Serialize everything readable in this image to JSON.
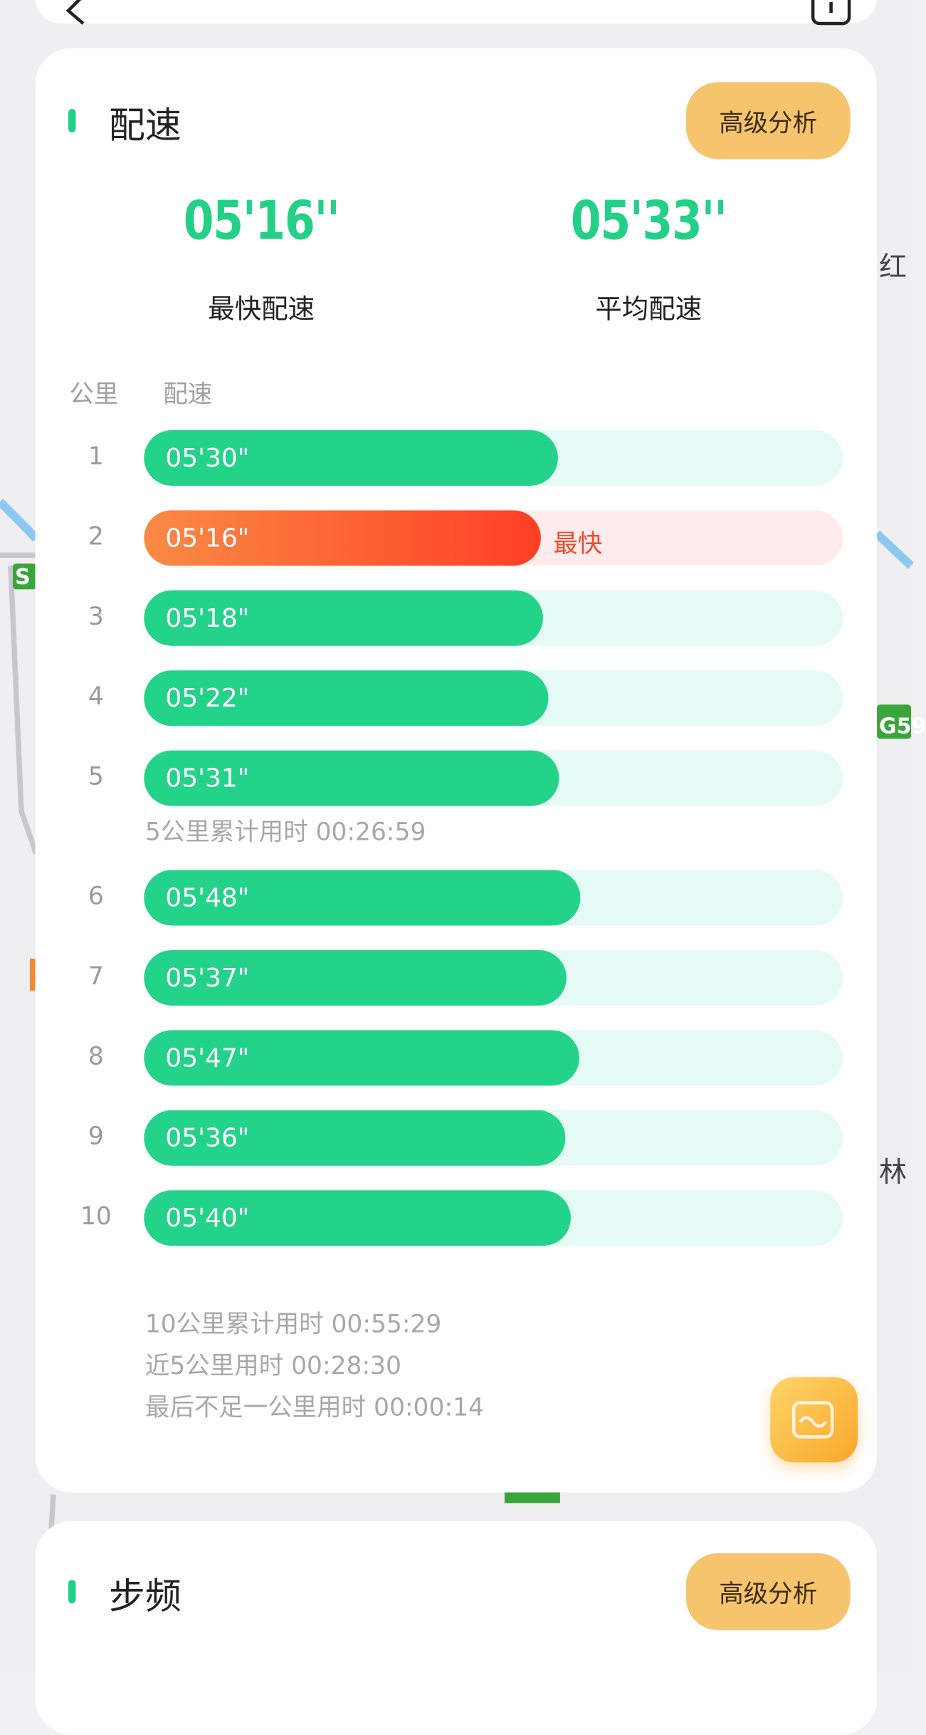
{
  "map_labels": [
    "红",
    "林",
    "G59",
    "S"
  ],
  "pace_card": {
    "title": "配速",
    "button": "高级分析",
    "stats": [
      {
        "value": "05'16''",
        "label": "最快配速"
      },
      {
        "value": "05'33''",
        "label": "平均配速"
      }
    ],
    "columns": [
      "公里",
      "配速"
    ],
    "rows": [
      {
        "km": "1",
        "pace": "05'30\""
      },
      {
        "km": "2",
        "pace": "05'16\"",
        "tag": "最快"
      },
      {
        "km": "3",
        "pace": "05'18\""
      },
      {
        "km": "4",
        "pace": "05'22\""
      },
      {
        "km": "5",
        "pace": "05'31\""
      },
      {
        "note": "5公里累计用时 00:26:59"
      },
      {
        "km": "6",
        "pace": "05'48\""
      },
      {
        "km": "7",
        "pace": "05'37\""
      },
      {
        "km": "8",
        "pace": "05'47\""
      },
      {
        "km": "9",
        "pace": "05'36\""
      },
      {
        "km": "10",
        "pace": "05'40\""
      }
    ],
    "footer": [
      "10公里累计用时 00:55:29",
      "近5公里用时 00:28:30",
      "最后不足一公里用时 00:00:14"
    ]
  },
  "cadence_card": {
    "title": "步频",
    "button": "高级分析"
  }
}
